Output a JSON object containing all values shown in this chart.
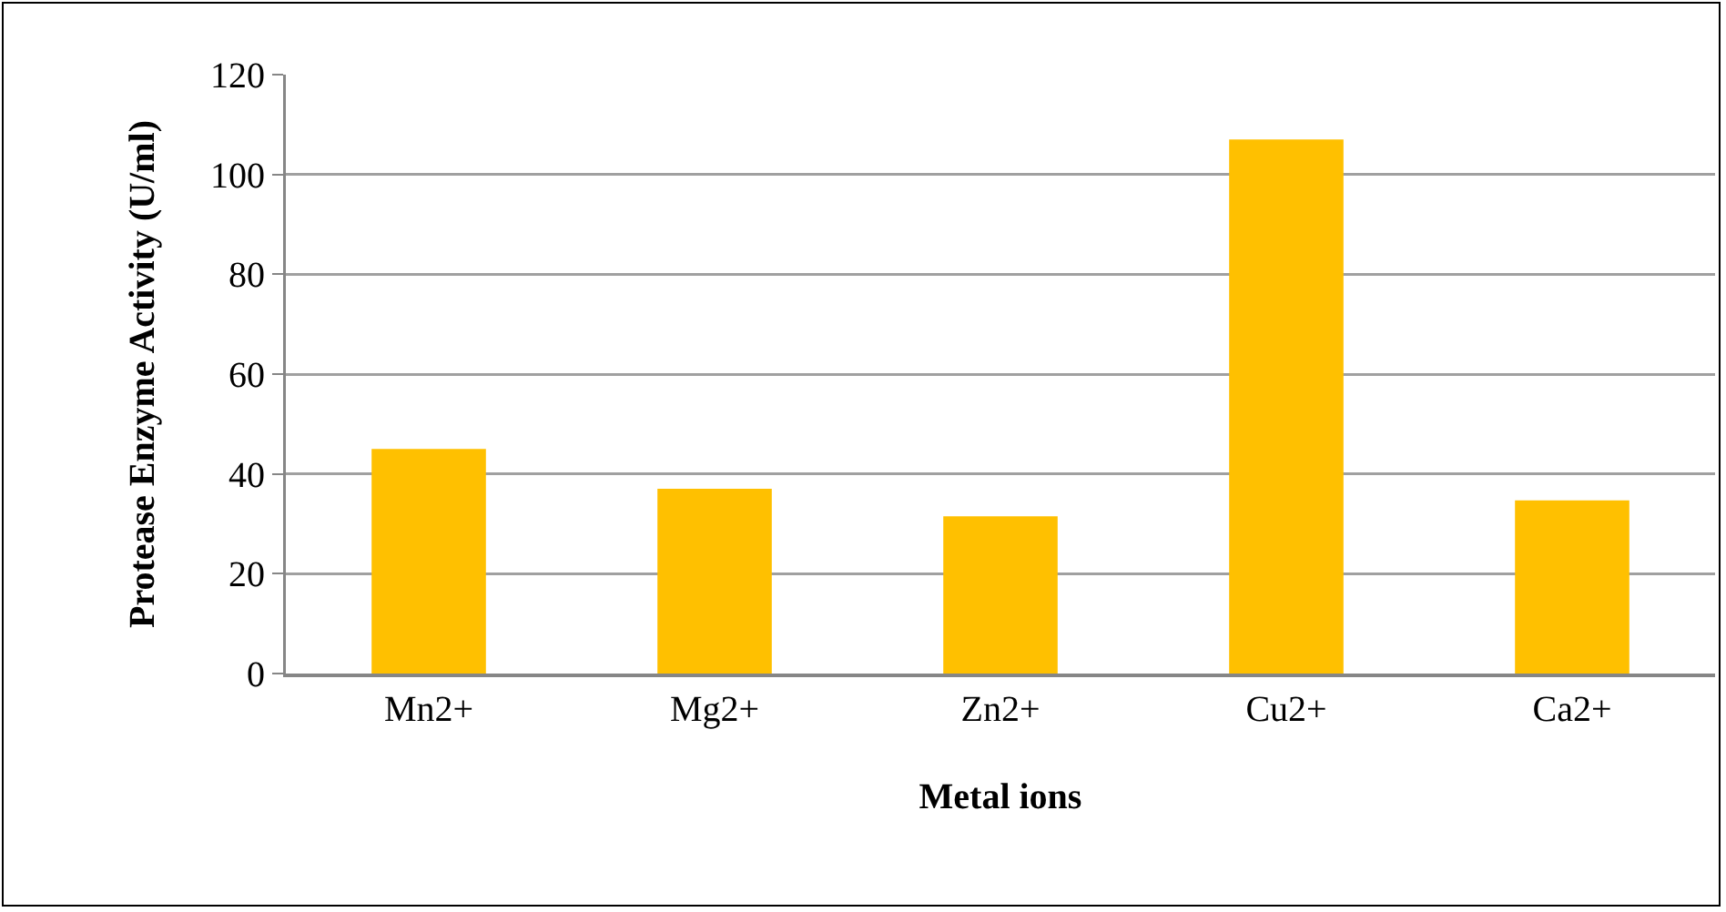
{
  "chart_data": {
    "type": "bar",
    "xlabel": "Metal ions",
    "ylabel": "Protease Enzyme Activity (U/ml)",
    "categories": [
      "Mn2+",
      "Mg2+",
      "Zn2+",
      "Cu2+",
      "Ca2+"
    ],
    "values": [
      45,
      37,
      31.5,
      107,
      34.7
    ],
    "color": "#ffc000",
    "ylim": [
      0,
      120
    ],
    "yticks": [
      0,
      20,
      40,
      60,
      80,
      100,
      120
    ],
    "grid": "y"
  }
}
